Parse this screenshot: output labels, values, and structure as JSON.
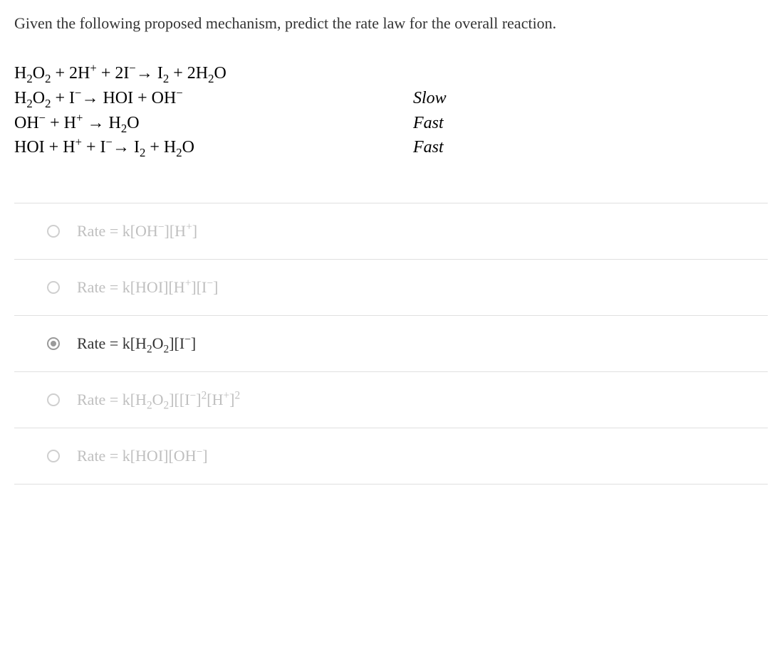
{
  "question": "Given the following proposed mechanism, predict the rate law for the overall reaction.",
  "mechanism": [
    {
      "eq": "H<sub>2</sub>O<sub>2</sub> + 2H<sup>+</sup> + 2I<sup>&minus;</sup><span class='arrow'>&rarr;</span> I<sub>2</sub> + 2H<sub>2</sub>O",
      "rate": ""
    },
    {
      "eq": "H<sub>2</sub>O<sub>2</sub> + I<sup>&minus;</sup><span class='arrow'>&rarr;</span> HOI + OH<sup>&minus;</sup>",
      "rate": "Slow"
    },
    {
      "eq": "OH<sup>&minus;</sup> + H<sup>+</sup> <span class='arrow'>&rarr;</span> H<sub>2</sub>O",
      "rate": "Fast"
    },
    {
      "eq": "HOI + H<sup>+</sup> + I<sup>&minus;</sup><span class='arrow'>&rarr;</span> I<sub>2</sub> + H<sub>2</sub>O",
      "rate": "Fast"
    }
  ],
  "options": [
    {
      "label": "Rate = k[OH<sup>&minus;</sup>][H<sup>+</sup>]",
      "selected": false
    },
    {
      "label": "Rate = k[HOI][H<sup>+</sup>][I<sup>&minus;</sup>]",
      "selected": false
    },
    {
      "label": "Rate = k[H<sub>2</sub>O<sub>2</sub>][I<sup>&minus;</sup>]",
      "selected": true
    },
    {
      "label": "Rate = k[H<sub>2</sub>O<sub>2</sub>][[I<sup>&minus;</sup>]<sup>2</sup>[H<sup>+</sup>]<sup>2</sup>",
      "selected": false
    },
    {
      "label": "Rate = k[HOI][OH<sup>&minus;</sup>]",
      "selected": false
    }
  ]
}
